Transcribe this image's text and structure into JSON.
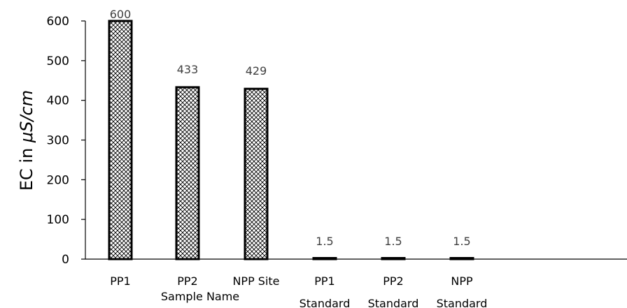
{
  "chart_data": {
    "type": "bar",
    "categories": [
      [
        "PP1"
      ],
      [
        "PP2"
      ],
      [
        "NPP Site"
      ],
      [
        "PP1",
        "Standard"
      ],
      [
        "PP2",
        "Standard"
      ],
      [
        "NPP",
        "Standard"
      ]
    ],
    "values": [
      600,
      433,
      429,
      1.5,
      1.5,
      1.5
    ],
    "data_labels": [
      "600",
      "433",
      "429",
      "1.5",
      "1.5",
      "1.5"
    ],
    "ylabel_prefix": "EC in ",
    "ylabel_unit": "μS/cm",
    "xlabel": "Sample Name",
    "ylim": [
      0,
      600
    ],
    "yticks": [
      "0",
      "100",
      "200",
      "300",
      "400",
      "500",
      "600"
    ],
    "grid": false,
    "bar_fill": "crosshatch",
    "bar_edge_color": "#000000"
  }
}
